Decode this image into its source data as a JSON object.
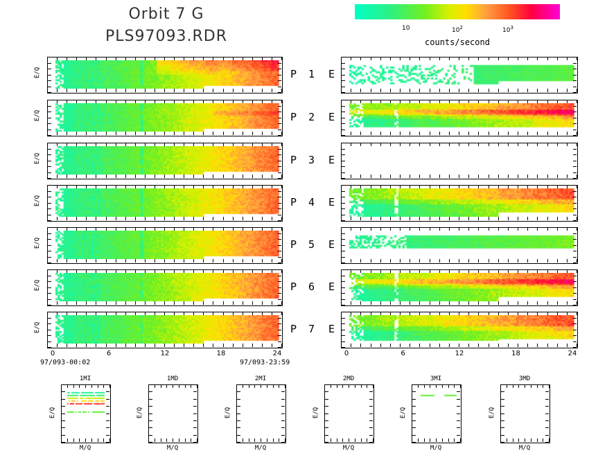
{
  "header": {
    "title_line1": "Orbit 7 G",
    "title_line2": "PLS97093.RDR"
  },
  "colorbar": {
    "ticks": [
      {
        "base": "10",
        "exp": ""
      },
      {
        "base": "10",
        "exp": "2"
      },
      {
        "base": "10",
        "exp": "3"
      }
    ],
    "label": "counts/second"
  },
  "rows": [
    {
      "p_label": "P",
      "num": "1",
      "e_label": "E"
    },
    {
      "p_label": "P",
      "num": "2",
      "e_label": "E"
    },
    {
      "p_label": "P",
      "num": "3",
      "e_label": "E"
    },
    {
      "p_label": "P",
      "num": "4",
      "e_label": "E"
    },
    {
      "p_label": "P",
      "num": "5",
      "e_label": "E"
    },
    {
      "p_label": "P",
      "num": "6",
      "e_label": "E"
    },
    {
      "p_label": "P",
      "num": "7",
      "e_label": "E"
    }
  ],
  "axis": {
    "y_label": "E/Q",
    "x_ticks": [
      "0",
      "6",
      "12",
      "18",
      "24"
    ],
    "start_date": "97/093-00:02",
    "end_date": "97/093-23:59"
  },
  "mini_plots": [
    {
      "title": "1MI",
      "xlabel": "M/Q",
      "ylabel": "E/Q"
    },
    {
      "title": "1MD",
      "xlabel": "M/Q",
      "ylabel": "E/Q"
    },
    {
      "title": "2MI",
      "xlabel": "M/Q",
      "ylabel": "E/Q"
    },
    {
      "title": "2MD",
      "xlabel": "M/Q",
      "ylabel": "E/Q"
    },
    {
      "title": "3MI",
      "xlabel": "M/Q",
      "ylabel": "E/Q"
    },
    {
      "title": "3MD",
      "xlabel": "M/Q",
      "ylabel": "E/Q"
    }
  ],
  "chart_data": {
    "type": "heatmap",
    "title": "Orbit 7 G",
    "subtitle": "PLS97093.RDR",
    "colorbar_label": "counts/second",
    "colorbar_scale": "log",
    "x_range_hours": [
      0,
      24
    ],
    "panels_left": [
      "P 1",
      "P 2",
      "P 3",
      "P 4",
      "P 5",
      "P 6",
      "P 7"
    ],
    "panels_right": [
      "E",
      "E",
      "E",
      "E",
      "E",
      "E",
      "E"
    ],
    "empty_right_panels": [
      "P 3"
    ],
    "mini_panels": [
      "1MI",
      "1MD",
      "2MI",
      "2MD",
      "3MI",
      "3MD"
    ],
    "mini_panels_with_data": [
      "1MI",
      "3MI"
    ]
  }
}
